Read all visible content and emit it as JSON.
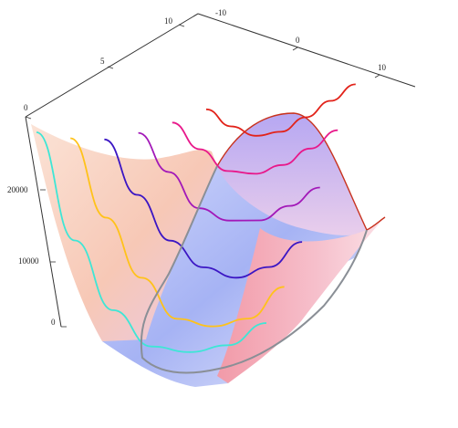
{
  "chart_data": {
    "type": "surface3d",
    "title": "",
    "axes": {
      "x": {
        "label": "",
        "range": [
          -10,
          12
        ],
        "ticks": [
          "-10",
          "0",
          "10"
        ]
      },
      "y": {
        "label": "",
        "range": [
          0,
          11
        ],
        "ticks": [
          "0",
          "5",
          "10"
        ]
      },
      "z": {
        "label": "",
        "range": [
          0,
          28000
        ],
        "ticks": [
          "0",
          "10000",
          "20000"
        ]
      }
    },
    "surface": {
      "description": "double-well valley surface with a central ridge; meshless, shaded pink-to-blue",
      "colors": {
        "warm": "#f7c9b4",
        "cool": "#a9b7f5",
        "mid": "#e8b6d8"
      }
    },
    "curves": [
      {
        "color": "#3ee6d6",
        "values": [
          26000,
          14000,
          6000,
          1500,
          200,
          200,
          1800
        ]
      },
      {
        "color": "#ffc21a",
        "values": [
          25000,
          16000,
          9000,
          4000,
          2500,
          2600,
          5200
        ]
      },
      {
        "color": "#3b16c4",
        "values": [
          24500,
          18000,
          12500,
          9000,
          7200,
          7600,
          9500
        ]
      },
      {
        "color": "#a218b8",
        "values": [
          24800,
          20000,
          15500,
          13500,
          12800,
          13600,
          14800
        ]
      },
      {
        "color": "#e8188a",
        "values": [
          25500,
          22000,
          19000,
          18000,
          18200,
          19200,
          20400
        ]
      },
      {
        "color": "#e2231a",
        "values": [
          26500,
          24000,
          22300,
          22000,
          22800,
          23800,
          24800
        ]
      }
    ],
    "grid": false,
    "legend": "none"
  }
}
